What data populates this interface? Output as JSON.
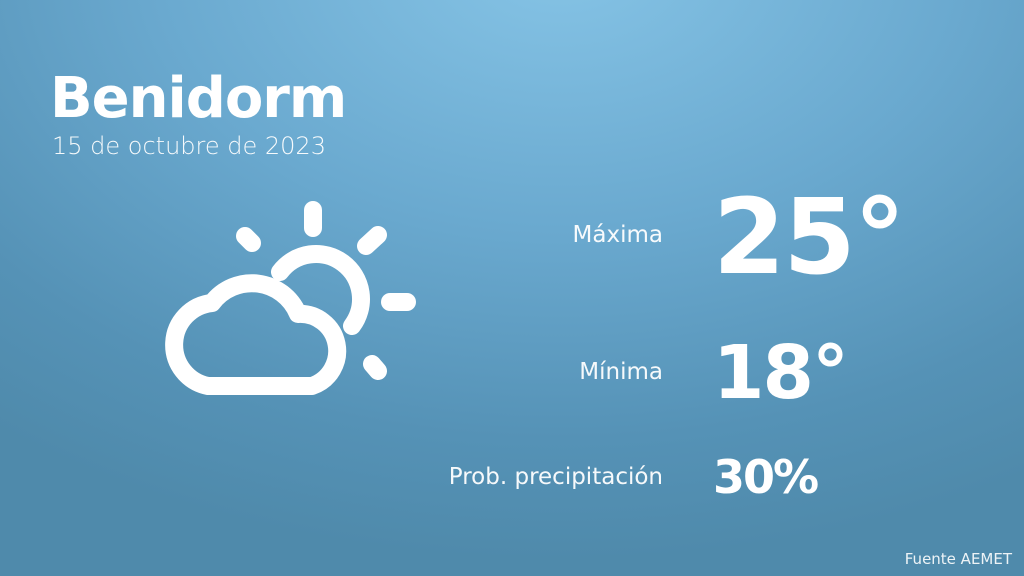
{
  "city": "Benidorm",
  "date": "15 de octubre de 2023",
  "icon": "partly-cloudy-icon",
  "max": {
    "label": "Máxima",
    "value": "25°"
  },
  "min": {
    "label": "Mínima",
    "value": "18°"
  },
  "precip": {
    "label": "Prob. precipitación",
    "value": "30%"
  },
  "source": "Fuente AEMET",
  "colors": {
    "background_top": "#86c4e6",
    "background_bottom": "#4f8aab",
    "text": "#ffffff"
  }
}
